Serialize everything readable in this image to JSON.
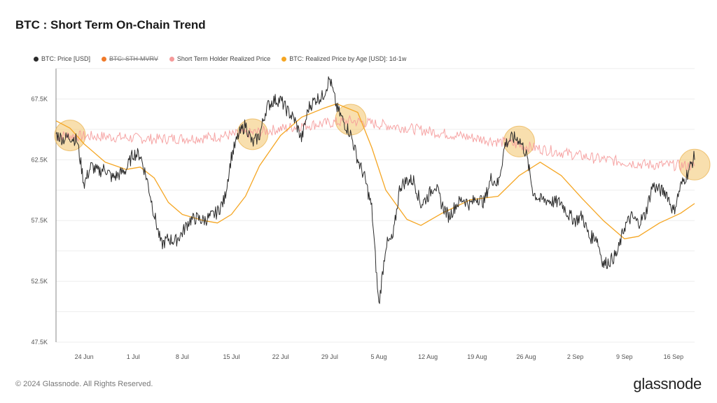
{
  "title": "BTC : Short Term On-Chain Trend",
  "footer": {
    "copyright": "© 2024 Glassnode. All Rights Reserved.",
    "brand": "glassnode"
  },
  "colors": {
    "price": "#2b2b2b",
    "sth_mvrv": "#f07a2a",
    "sth_realized": "#f59a9a",
    "realized_1d1w": "#f5a623",
    "highlight": "#f2c46b"
  },
  "chart_data": {
    "type": "line",
    "title": "BTC : Short Term On-Chain Trend",
    "xlabel": "",
    "ylabel": "",
    "legend_position": "top-left",
    "grid": true,
    "x_start": "2024-06-20",
    "x_end": "2024-09-19",
    "xticks": [
      {
        "label": "24 Jun",
        "date": "2024-06-24"
      },
      {
        "label": "1 Jul",
        "date": "2024-07-01"
      },
      {
        "label": "8 Jul",
        "date": "2024-07-08"
      },
      {
        "label": "15 Jul",
        "date": "2024-07-15"
      },
      {
        "label": "22 Jul",
        "date": "2024-07-22"
      },
      {
        "label": "29 Jul",
        "date": "2024-07-29"
      },
      {
        "label": "5 Aug",
        "date": "2024-08-05"
      },
      {
        "label": "12 Aug",
        "date": "2024-08-12"
      },
      {
        "label": "19 Aug",
        "date": "2024-08-19"
      },
      {
        "label": "26 Aug",
        "date": "2024-08-26"
      },
      {
        "label": "2 Sep",
        "date": "2024-09-02"
      },
      {
        "label": "9 Sep",
        "date": "2024-09-09"
      },
      {
        "label": "16 Sep",
        "date": "2024-09-16"
      }
    ],
    "ylim": [
      47500,
      70000
    ],
    "yticks": [
      {
        "label": "47.5K",
        "value": 47500
      },
      {
        "label": "52.5K",
        "value": 52500
      },
      {
        "label": "57.5K",
        "value": 57500
      },
      {
        "label": "62.5K",
        "value": 62500
      },
      {
        "label": "67.5K",
        "value": 67500
      }
    ],
    "series": [
      {
        "name": "BTC: Price [USD]",
        "key": "price",
        "color": "#2b2b2b",
        "enabled": true,
        "points": [
          [
            "2024-06-20",
            64600
          ],
          [
            "2024-06-21",
            64200
          ],
          [
            "2024-06-22",
            64400
          ],
          [
            "2024-06-23",
            64100
          ],
          [
            "2024-06-24",
            60500
          ],
          [
            "2024-06-25",
            62000
          ],
          [
            "2024-06-26",
            61500
          ],
          [
            "2024-06-27",
            61800
          ],
          [
            "2024-06-28",
            61000
          ],
          [
            "2024-06-29",
            61300
          ],
          [
            "2024-06-30",
            61700
          ],
          [
            "2024-07-01",
            63000
          ],
          [
            "2024-07-02",
            62900
          ],
          [
            "2024-07-03",
            60800
          ],
          [
            "2024-07-04",
            58000
          ],
          [
            "2024-07-05",
            55500
          ],
          [
            "2024-07-06",
            56000
          ],
          [
            "2024-07-07",
            55800
          ],
          [
            "2024-07-08",
            56500
          ],
          [
            "2024-07-09",
            57500
          ],
          [
            "2024-07-10",
            57700
          ],
          [
            "2024-07-11",
            57500
          ],
          [
            "2024-07-12",
            57800
          ],
          [
            "2024-07-13",
            58200
          ],
          [
            "2024-07-14",
            59200
          ],
          [
            "2024-07-15",
            62800
          ],
          [
            "2024-07-16",
            64500
          ],
          [
            "2024-07-17",
            65400
          ],
          [
            "2024-07-18",
            63800
          ],
          [
            "2024-07-19",
            64500
          ],
          [
            "2024-07-20",
            66800
          ],
          [
            "2024-07-21",
            67400
          ],
          [
            "2024-07-22",
            67400
          ],
          [
            "2024-07-23",
            66500
          ],
          [
            "2024-07-24",
            65800
          ],
          [
            "2024-07-25",
            64200
          ],
          [
            "2024-07-26",
            66800
          ],
          [
            "2024-07-27",
            67500
          ],
          [
            "2024-07-28",
            67700
          ],
          [
            "2024-07-29",
            69200
          ],
          [
            "2024-07-30",
            66800
          ],
          [
            "2024-07-31",
            65600
          ],
          [
            "2024-08-01",
            64600
          ],
          [
            "2024-08-02",
            62500
          ],
          [
            "2024-08-03",
            61000
          ],
          [
            "2024-08-04",
            58500
          ],
          [
            "2024-08-05",
            50500
          ],
          [
            "2024-08-06",
            55500
          ],
          [
            "2024-08-07",
            56000
          ],
          [
            "2024-08-08",
            60300
          ],
          [
            "2024-08-09",
            60800
          ],
          [
            "2024-08-10",
            60800
          ],
          [
            "2024-08-11",
            58800
          ],
          [
            "2024-08-12",
            59500
          ],
          [
            "2024-08-13",
            60500
          ],
          [
            "2024-08-14",
            58800
          ],
          [
            "2024-08-15",
            57800
          ],
          [
            "2024-08-16",
            58800
          ],
          [
            "2024-08-17",
            59300
          ],
          [
            "2024-08-18",
            58800
          ],
          [
            "2024-08-19",
            59400
          ],
          [
            "2024-08-20",
            59000
          ],
          [
            "2024-08-21",
            61000
          ],
          [
            "2024-08-22",
            60500
          ],
          [
            "2024-08-23",
            63800
          ],
          [
            "2024-08-24",
            64300
          ],
          [
            "2024-08-25",
            64200
          ],
          [
            "2024-08-26",
            63000
          ],
          [
            "2024-08-27",
            59800
          ],
          [
            "2024-08-28",
            59200
          ],
          [
            "2024-08-29",
            59200
          ],
          [
            "2024-08-30",
            59000
          ],
          [
            "2024-08-31",
            59000
          ],
          [
            "2024-09-01",
            58000
          ],
          [
            "2024-09-02",
            57500
          ],
          [
            "2024-09-03",
            57900
          ],
          [
            "2024-09-04",
            56100
          ],
          [
            "2024-09-05",
            56200
          ],
          [
            "2024-09-06",
            53900
          ],
          [
            "2024-09-07",
            54200
          ],
          [
            "2024-09-08",
            54800
          ],
          [
            "2024-09-09",
            57000
          ],
          [
            "2024-09-10",
            57800
          ],
          [
            "2024-09-11",
            57300
          ],
          [
            "2024-09-12",
            58000
          ],
          [
            "2024-09-13",
            60400
          ],
          [
            "2024-09-14",
            60000
          ],
          [
            "2024-09-15",
            59800
          ],
          [
            "2024-09-16",
            58200
          ],
          [
            "2024-09-17",
            60300
          ],
          [
            "2024-09-18",
            61400
          ],
          [
            "2024-09-19",
            62800
          ]
        ]
      },
      {
        "name": "BTC: STH-MVRV",
        "key": "sth_mvrv",
        "color": "#f07a2a",
        "enabled": false,
        "points": []
      },
      {
        "name": "Short Term Holder Realized Price",
        "key": "sth_realized",
        "color": "#f59a9a",
        "enabled": true,
        "points": [
          [
            "2024-06-20",
            64500
          ],
          [
            "2024-06-27",
            64400
          ],
          [
            "2024-07-04",
            64200
          ],
          [
            "2024-07-11",
            64300
          ],
          [
            "2024-07-18",
            64700
          ],
          [
            "2024-07-25",
            65300
          ],
          [
            "2024-08-01",
            65700
          ],
          [
            "2024-08-08",
            65200
          ],
          [
            "2024-08-15",
            64600
          ],
          [
            "2024-08-22",
            64000
          ],
          [
            "2024-08-29",
            63300
          ],
          [
            "2024-09-05",
            62600
          ],
          [
            "2024-09-12",
            62100
          ],
          [
            "2024-09-19",
            62000
          ]
        ]
      },
      {
        "name": "BTC: Realized Price by Age [USD]: 1d-1w",
        "key": "realized_1d1w",
        "color": "#f5a623",
        "enabled": true,
        "points": [
          [
            "2024-06-20",
            65700
          ],
          [
            "2024-06-22",
            65100
          ],
          [
            "2024-06-24",
            63800
          ],
          [
            "2024-06-27",
            62300
          ],
          [
            "2024-06-30",
            61700
          ],
          [
            "2024-07-02",
            61900
          ],
          [
            "2024-07-04",
            61000
          ],
          [
            "2024-07-06",
            59000
          ],
          [
            "2024-07-08",
            58000
          ],
          [
            "2024-07-11",
            57500
          ],
          [
            "2024-07-13",
            57300
          ],
          [
            "2024-07-15",
            58000
          ],
          [
            "2024-07-17",
            59500
          ],
          [
            "2024-07-19",
            62000
          ],
          [
            "2024-07-22",
            64500
          ],
          [
            "2024-07-25",
            66000
          ],
          [
            "2024-07-28",
            66700
          ],
          [
            "2024-07-30",
            67100
          ],
          [
            "2024-08-02",
            66400
          ],
          [
            "2024-08-04",
            63500
          ],
          [
            "2024-08-06",
            60000
          ],
          [
            "2024-08-09",
            57600
          ],
          [
            "2024-08-11",
            57100
          ],
          [
            "2024-08-14",
            58100
          ],
          [
            "2024-08-18",
            59200
          ],
          [
            "2024-08-22",
            59500
          ],
          [
            "2024-08-25",
            61200
          ],
          [
            "2024-08-28",
            62300
          ],
          [
            "2024-08-31",
            61200
          ],
          [
            "2024-09-03",
            59300
          ],
          [
            "2024-09-06",
            57500
          ],
          [
            "2024-09-09",
            56000
          ],
          [
            "2024-09-11",
            56200
          ],
          [
            "2024-09-14",
            57300
          ],
          [
            "2024-09-17",
            58100
          ],
          [
            "2024-09-19",
            58900
          ]
        ]
      }
    ],
    "highlights": [
      {
        "date": "2024-06-22",
        "value": 64500
      },
      {
        "date": "2024-07-18",
        "value": 64600
      },
      {
        "date": "2024-08-01",
        "value": 65800
      },
      {
        "date": "2024-08-25",
        "value": 64000
      },
      {
        "date": "2024-09-19",
        "value": 62100
      }
    ]
  }
}
